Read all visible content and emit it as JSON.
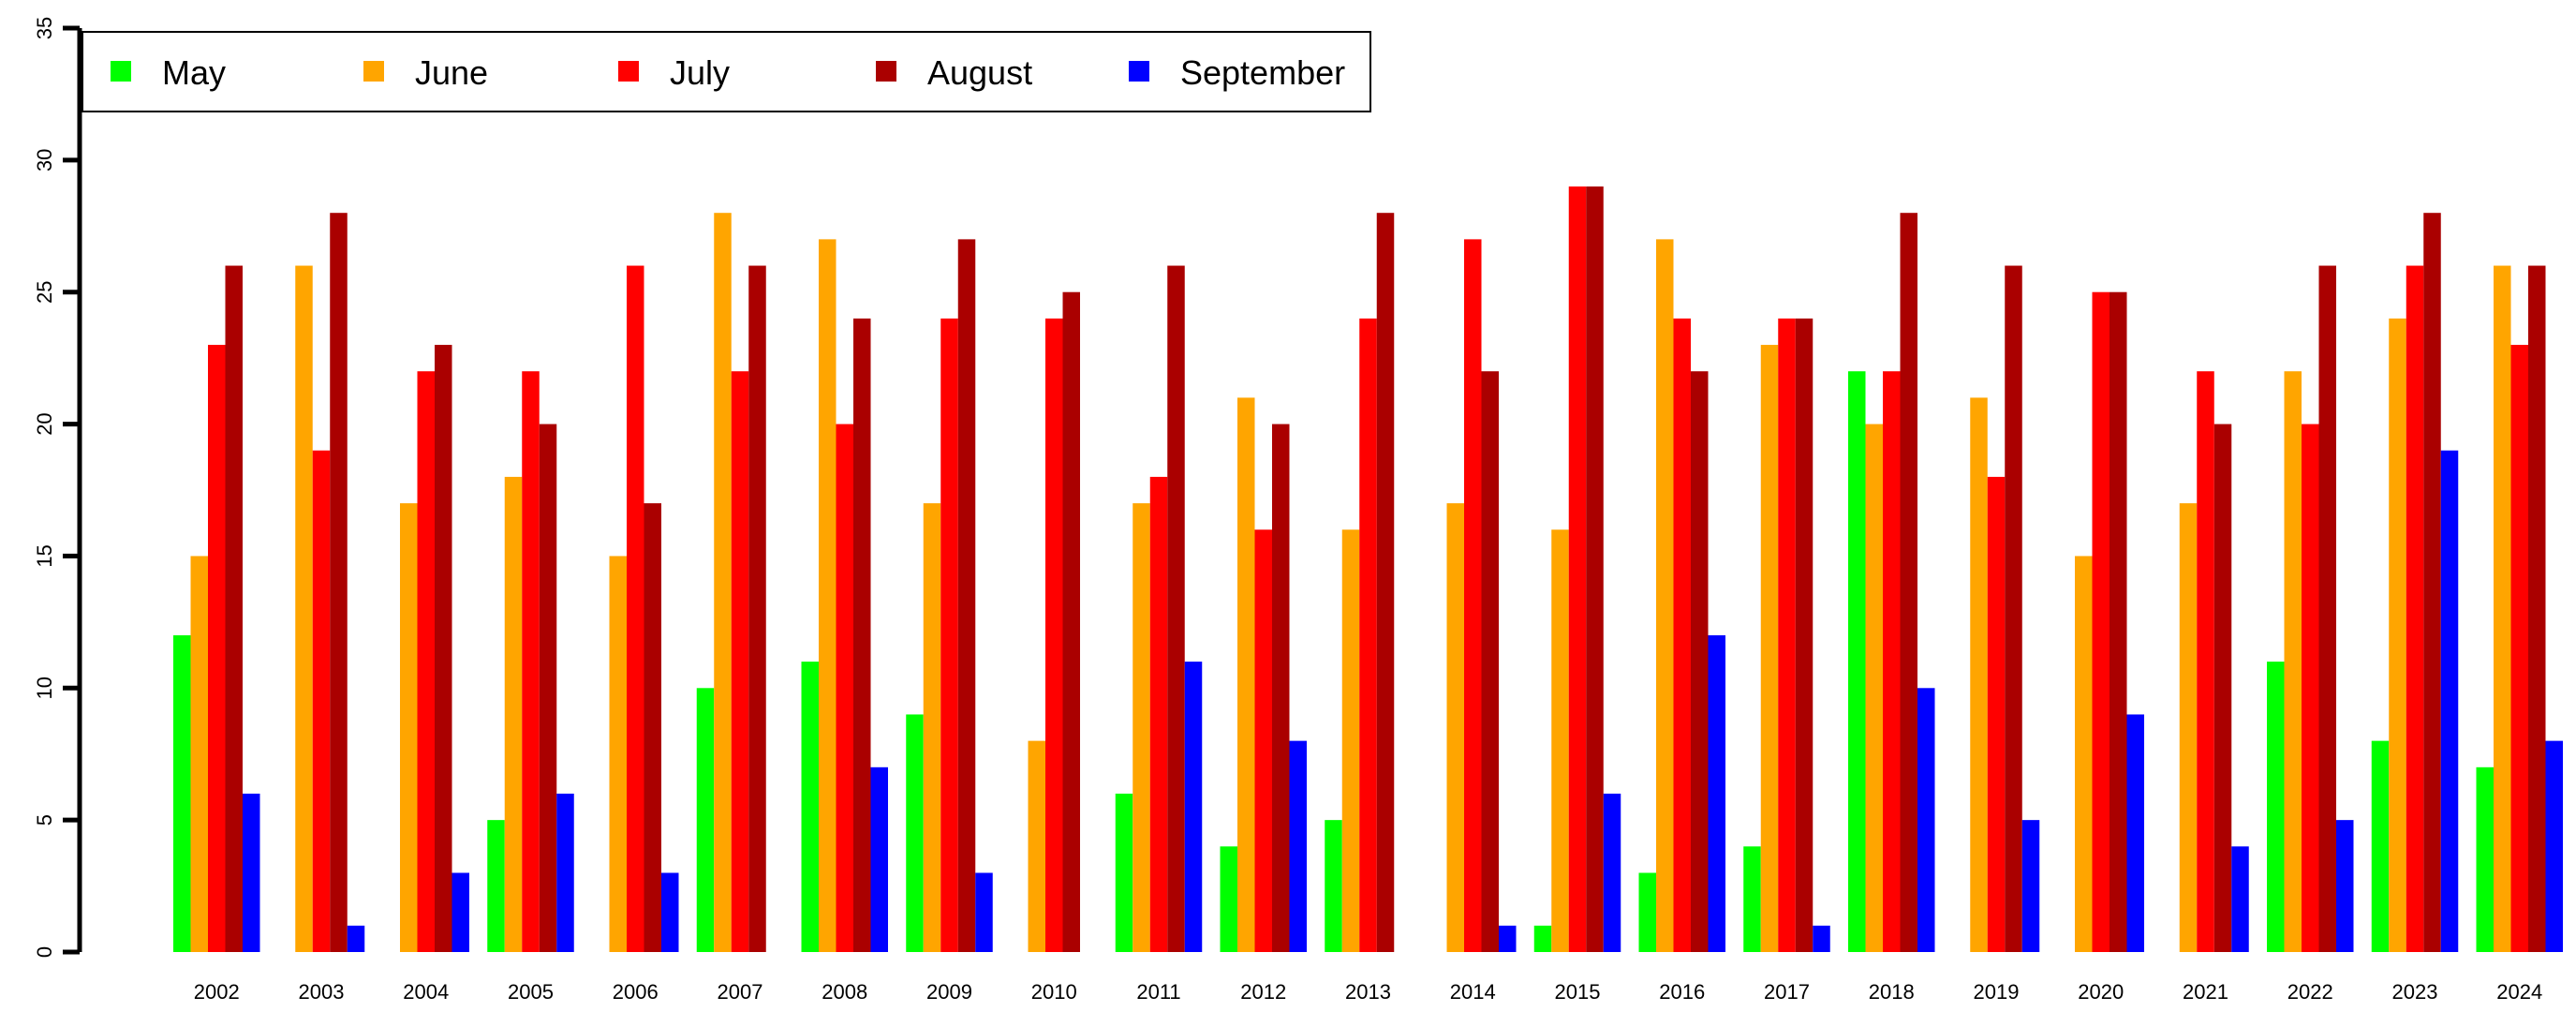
{
  "chart_data": {
    "type": "bar",
    "title": "",
    "xlabel": "",
    "ylabel": "",
    "ylim": [
      0,
      35
    ],
    "yticks": [
      0,
      5,
      10,
      15,
      20,
      25,
      30,
      35
    ],
    "grid": false,
    "legend_position": "top-left",
    "categories": [
      "2002",
      "2003",
      "2004",
      "2005",
      "2006",
      "2007",
      "2008",
      "2009",
      "2010",
      "2011",
      "2012",
      "2013",
      "2014",
      "2015",
      "2016",
      "2017",
      "2018",
      "2019",
      "2020",
      "2021",
      "2022",
      "2023",
      "2024"
    ],
    "series": [
      {
        "name": "May",
        "color": "#00ff00",
        "values": [
          12,
          0,
          0,
          5,
          0,
          10,
          11,
          9,
          0,
          6,
          4,
          5,
          0,
          1,
          3,
          4,
          22,
          0,
          0,
          0,
          11,
          8,
          7
        ]
      },
      {
        "name": "June",
        "color": "#ffa500",
        "values": [
          15,
          26,
          17,
          18,
          15,
          28,
          27,
          17,
          8,
          17,
          21,
          16,
          17,
          16,
          27,
          23,
          20,
          21,
          15,
          17,
          22,
          24,
          26
        ]
      },
      {
        "name": "July",
        "color": "#ff0000",
        "values": [
          23,
          19,
          22,
          22,
          26,
          22,
          20,
          24,
          24,
          18,
          16,
          24,
          27,
          29,
          24,
          24,
          22,
          18,
          25,
          22,
          20,
          26,
          23
        ]
      },
      {
        "name": "August",
        "color": "#aa0000",
        "values": [
          26,
          28,
          23,
          20,
          17,
          26,
          24,
          27,
          25,
          26,
          20,
          28,
          22,
          29,
          22,
          24,
          28,
          26,
          25,
          20,
          26,
          28,
          26
        ]
      },
      {
        "name": "September",
        "color": "#0000ff",
        "values": [
          6,
          1,
          3,
          6,
          3,
          0,
          7,
          3,
          0,
          11,
          8,
          0,
          1,
          6,
          12,
          1,
          10,
          5,
          9,
          4,
          5,
          19,
          8
        ]
      }
    ]
  }
}
